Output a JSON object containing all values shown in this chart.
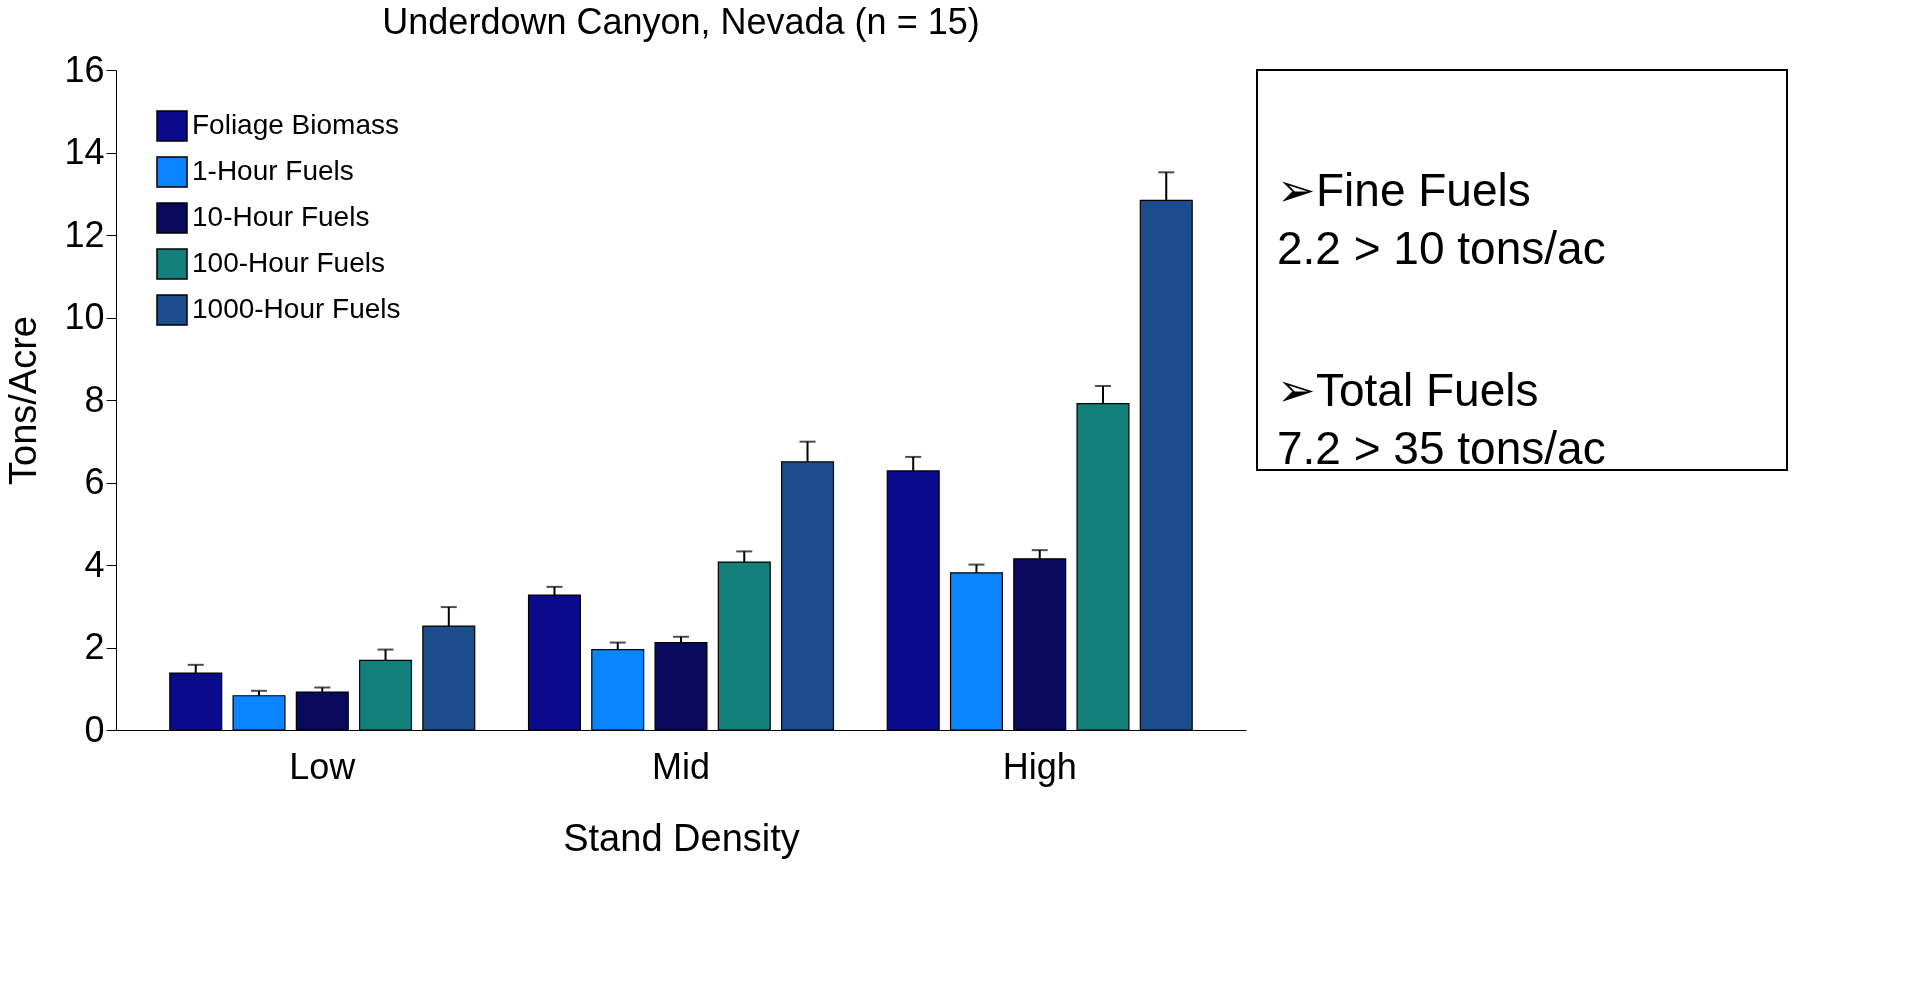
{
  "chart_data": {
    "type": "bar",
    "title": "Underdown Canyon, Nevada (n = 15)",
    "xlabel": "Stand Density",
    "ylabel": "Tons/Acre",
    "categories": [
      "Low",
      "Mid",
      "High"
    ],
    "series": [
      {
        "name": "Foliage Biomass",
        "color": "#0a0a8c",
        "values": [
          1.38,
          3.27,
          6.28
        ],
        "errors": [
          [
            1.38,
            1.58
          ],
          [
            3.27,
            3.47
          ],
          [
            6.28,
            6.62
          ]
        ]
      },
      {
        "name": "1-Hour Fuels",
        "color": "#0a84ff",
        "values": [
          0.83,
          1.95,
          3.81
        ],
        "errors": [
          [
            0.83,
            0.95
          ],
          [
            1.95,
            2.12
          ],
          [
            3.81,
            4.01
          ]
        ]
      },
      {
        "name": "10-Hour Fuels",
        "color": "#0a0a5c",
        "values": [
          0.92,
          2.12,
          4.15
        ],
        "errors": [
          [
            0.92,
            1.03
          ],
          [
            2.12,
            2.26
          ],
          [
            4.15,
            4.36
          ]
        ]
      },
      {
        "name": "100-Hour Fuels",
        "color": "#137f7a",
        "values": [
          1.69,
          4.07,
          7.91
        ],
        "errors": [
          [
            1.69,
            1.95
          ],
          [
            4.07,
            4.33
          ],
          [
            7.91,
            8.34
          ]
        ]
      },
      {
        "name": "1000-Hour Fuels",
        "color": "#1b4c8c",
        "values": [
          2.52,
          6.5,
          12.84
        ],
        "errors": [
          [
            2.52,
            2.98
          ],
          [
            6.5,
            6.99
          ],
          [
            12.84,
            13.52
          ]
        ]
      }
    ],
    "ylim": [
      0,
      16
    ],
    "yticks": [
      0,
      2,
      4,
      6,
      8,
      10,
      12,
      14,
      16
    ],
    "grid": false,
    "legend": "top left",
    "annotations": [
      "➢Fine Fuels\n2.2 > 10 tons/ac",
      "➢Total Fuels\n7.2 > 35 tons/ac"
    ]
  }
}
